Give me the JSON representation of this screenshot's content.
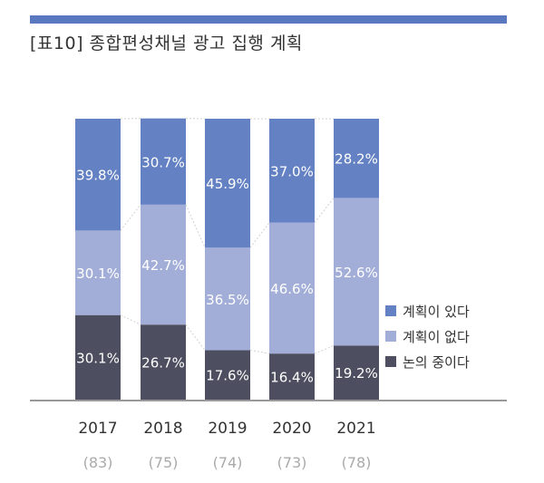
{
  "title": "[표10] 종합편성채널 광고 집행 계획",
  "colors": {
    "rule": "#5a78c0",
    "planned": "#6381c3",
    "not_planned": "#a3aed8",
    "discussing": "#4d4e5f",
    "baseline": "#999999"
  },
  "chart_data": {
    "type": "bar",
    "stacked": true,
    "unit": "%",
    "categories": [
      "2017",
      "2018",
      "2019",
      "2020",
      "2021"
    ],
    "sample_sizes": [
      "(83)",
      "(75)",
      "(74)",
      "(73)",
      "(78)"
    ],
    "series": [
      {
        "name": "계획이 있다",
        "values": [
          39.8,
          30.7,
          45.9,
          37.0,
          28.2
        ],
        "labels": [
          "39.8%",
          "30.7%",
          "45.9%",
          "37.0%",
          "28.2%"
        ]
      },
      {
        "name": "계획이 없다",
        "values": [
          30.1,
          42.7,
          36.5,
          46.6,
          52.6
        ],
        "labels": [
          "30.1%",
          "42.7%",
          "36.5%",
          "46.6%",
          "52.6%"
        ]
      },
      {
        "name": "논의 중이다",
        "values": [
          30.1,
          26.7,
          17.6,
          16.4,
          19.2
        ],
        "labels": [
          "30.1%",
          "26.7%",
          "17.6%",
          "16.4%",
          "19.2%"
        ]
      }
    ],
    "ylim": [
      0,
      100
    ],
    "legend_position": "right"
  }
}
